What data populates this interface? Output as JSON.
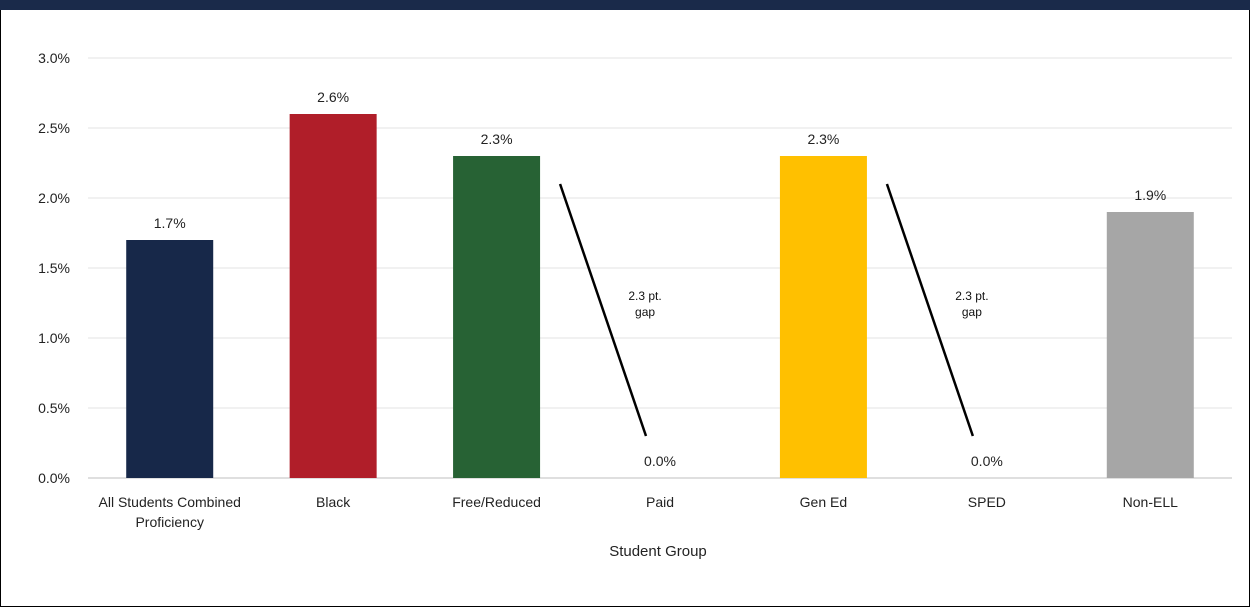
{
  "chart_data": {
    "type": "bar",
    "xlabel": "Student Group",
    "ylabel": "",
    "ylim": [
      0,
      0.03
    ],
    "y_ticks": [
      "0.0%",
      "0.5%",
      "1.0%",
      "1.5%",
      "2.0%",
      "2.5%",
      "3.0%"
    ],
    "grid": true,
    "categories": [
      "All Students Combined Proficiency",
      "Black",
      "Free/Reduced",
      "Paid",
      "Gen Ed",
      "SPED",
      "Non-ELL"
    ],
    "values": [
      0.017,
      0.026,
      0.023,
      0.0,
      0.023,
      0.0,
      0.019
    ],
    "data_labels": [
      "1.7%",
      "2.6%",
      "2.3%",
      "0.0%",
      "2.3%",
      "0.0%",
      "1.9%"
    ],
    "colors": [
      "#172849",
      "#b01e29",
      "#276234",
      "#ffffff",
      "#ffc000",
      "#ffffff",
      "#a6a6a6"
    ],
    "annotations": [
      {
        "text_lines": [
          "2.3 pt.",
          "gap"
        ],
        "from_category": "Free/Reduced",
        "to_category": "Paid"
      },
      {
        "text_lines": [
          "2.3 pt.",
          "gap"
        ],
        "from_category": "Gen Ed",
        "to_category": "SPED"
      }
    ]
  }
}
